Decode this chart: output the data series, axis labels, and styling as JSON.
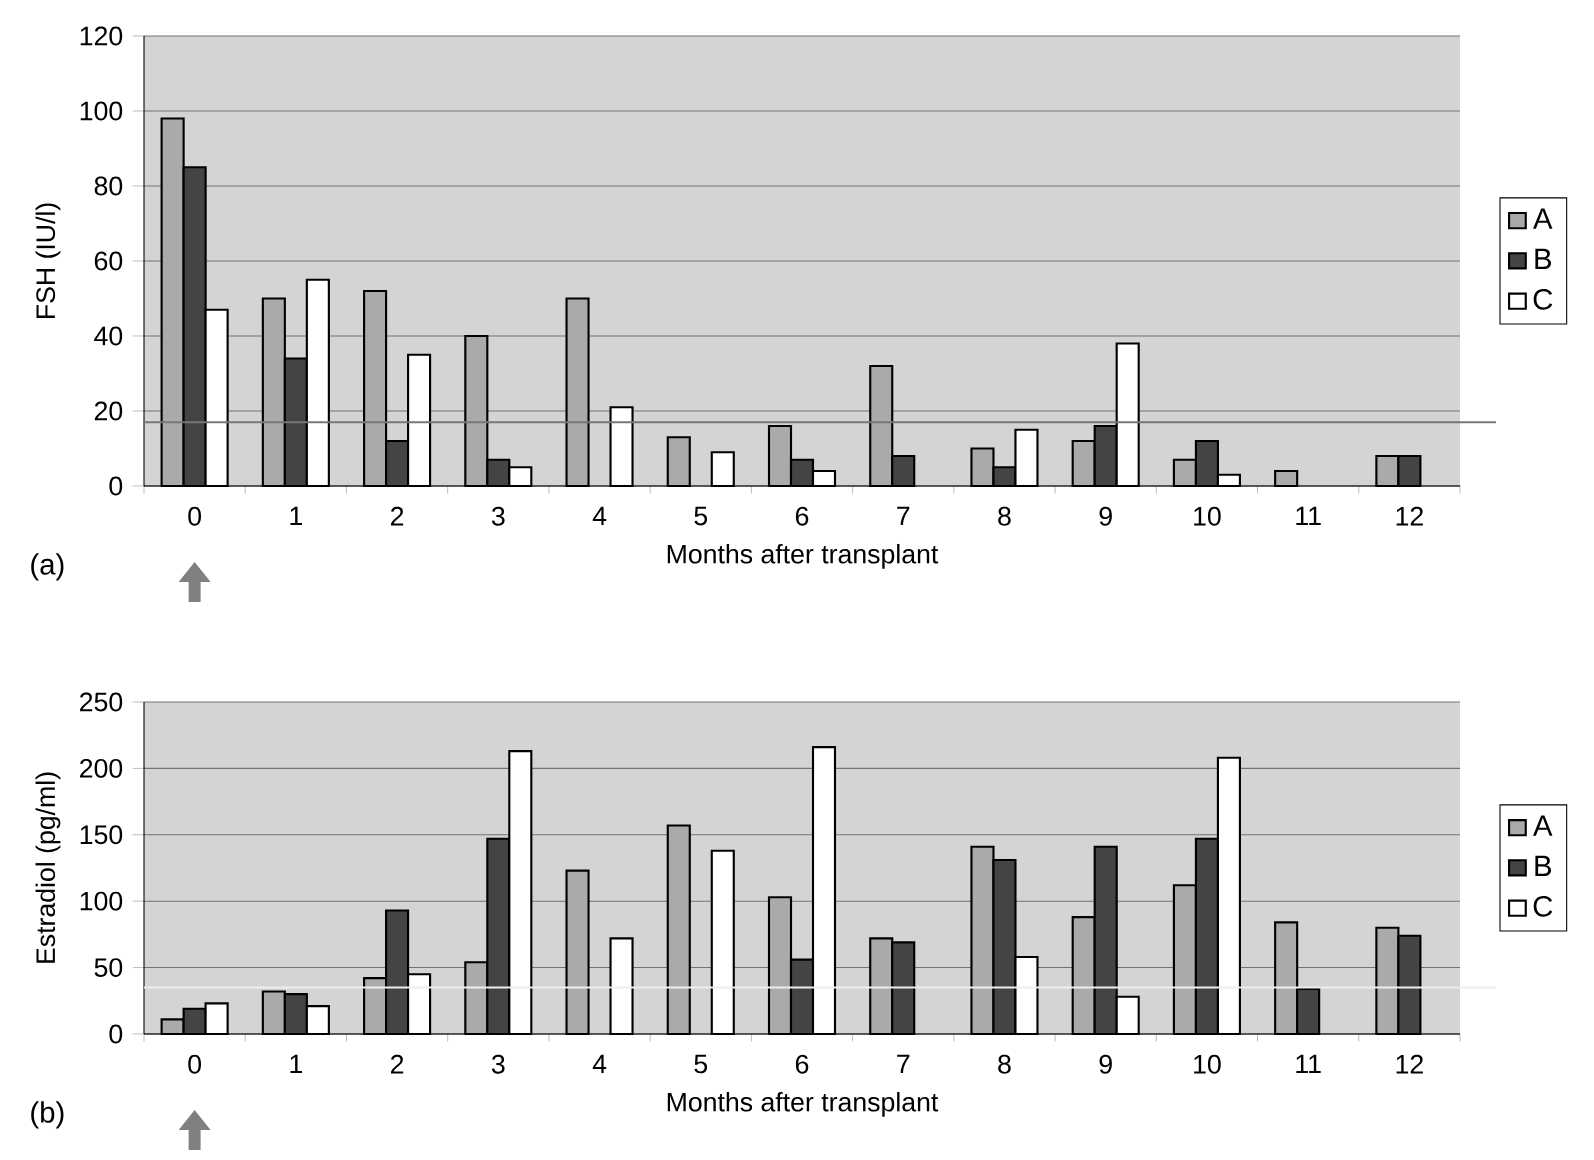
{
  "chart_data": [
    {
      "type": "bar",
      "xlabel": "Months after transplant",
      "ylabel": "FSH (IU/l)",
      "categories": [
        "0",
        "1",
        "2",
        "3",
        "4",
        "5",
        "6",
        "7",
        "8",
        "9",
        "10",
        "11",
        "12"
      ],
      "series": [
        {
          "name": "A",
          "color": "#aaaaaa",
          "values": [
            98,
            50,
            52,
            40,
            50,
            13,
            16,
            32,
            10,
            12,
            7,
            4,
            8
          ]
        },
        {
          "name": "B",
          "color": "#444444",
          "values": [
            85,
            34,
            12,
            7,
            null,
            null,
            7,
            8,
            5,
            16,
            12,
            null,
            8
          ]
        },
        {
          "name": "C",
          "color": "#ffffff",
          "values": [
            47,
            55,
            35,
            5,
            21,
            9,
            4,
            null,
            15,
            38,
            3,
            null,
            null
          ]
        }
      ],
      "ylim": [
        0,
        120
      ],
      "yticks": [
        0,
        20,
        40,
        60,
        80,
        100,
        120
      ],
      "grid": "y",
      "legend": "right",
      "ref_lines": [
        {
          "axis": "y",
          "value": 17,
          "color": "#777777"
        }
      ],
      "annotations": [
        "(a)"
      ]
    },
    {
      "type": "bar",
      "xlabel": "Months after transplant",
      "ylabel": "Estradiol (pg/ml)",
      "categories": [
        "0",
        "1",
        "2",
        "3",
        "4",
        "5",
        "6",
        "7",
        "8",
        "9",
        "10",
        "11",
        "12"
      ],
      "series": [
        {
          "name": "A",
          "color": "#aaaaaa",
          "values": [
            11,
            32,
            42,
            54,
            123,
            157,
            103,
            72,
            141,
            88,
            112,
            84,
            80
          ]
        },
        {
          "name": "B",
          "color": "#444444",
          "values": [
            19,
            30,
            93,
            147,
            null,
            null,
            56,
            69,
            131,
            141,
            147,
            34,
            74
          ]
        },
        {
          "name": "C",
          "color": "#ffffff",
          "values": [
            23,
            21,
            45,
            213,
            72,
            138,
            216,
            null,
            58,
            28,
            208,
            null,
            null
          ]
        }
      ],
      "ylim": [
        0,
        250
      ],
      "yticks": [
        0,
        50,
        100,
        150,
        200,
        250
      ],
      "grid": "y",
      "legend": "right",
      "ref_lines": [
        {
          "axis": "y",
          "value": 35,
          "color": "#eeeeee"
        }
      ],
      "annotations": [
        "(b)"
      ]
    }
  ]
}
